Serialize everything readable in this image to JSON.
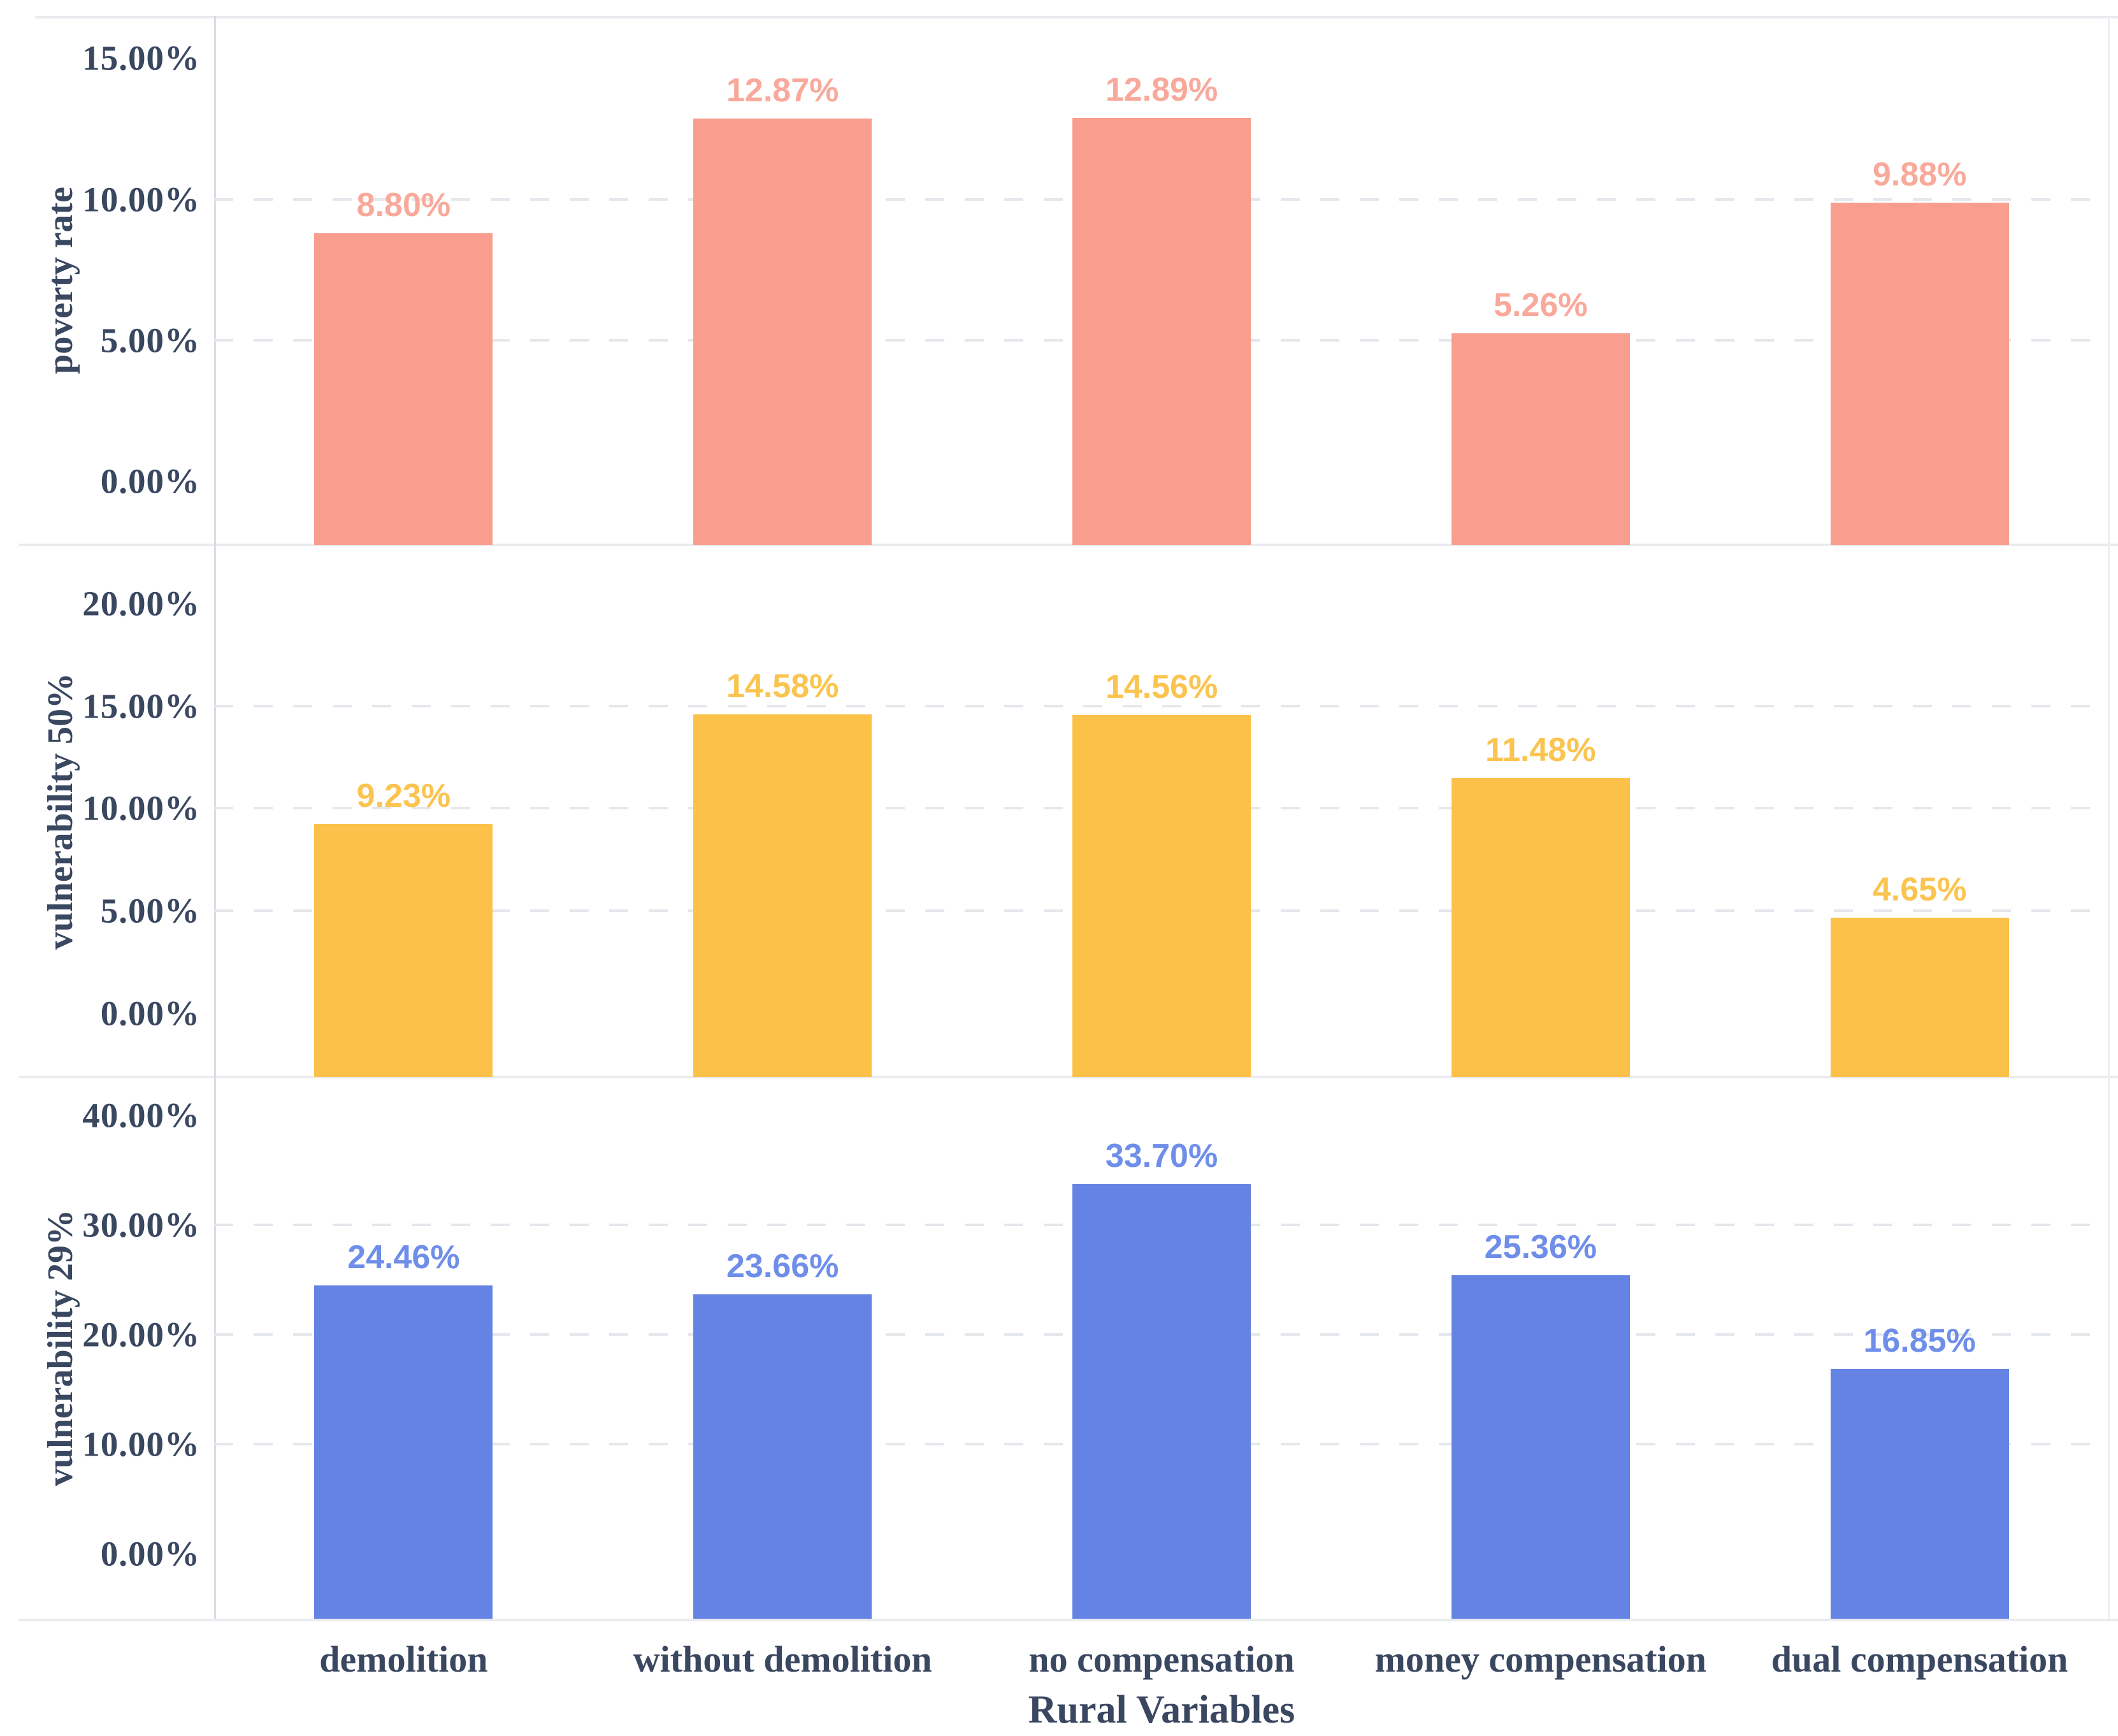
{
  "chart_data": {
    "type": "bar",
    "title": "",
    "xlabel": "Rural Variables",
    "categories": [
      "demolition",
      "without demolition",
      "no compensation",
      "money compensation",
      "dual compensation"
    ],
    "legend": "none",
    "grid": "dashed horizontal gridlines at interior ticks only",
    "background": "#ffffff",
    "text_color": "#3a4760",
    "gridline_color": "#e4e7eb",
    "axis_line_color": "#d9dde3",
    "separator_color": "#e9ebef",
    "panels": [
      {
        "ylabel": "poverty rate",
        "ymax": 15,
        "tick_step": 5,
        "ticks": [
          {
            "label": "0.00%",
            "value": 0
          },
          {
            "label": "5.00%",
            "value": 5
          },
          {
            "label": "10.00%",
            "value": 10
          },
          {
            "label": "15.00%",
            "value": 15
          }
        ],
        "values": [
          8.8,
          12.87,
          12.89,
          5.26,
          9.88
        ],
        "value_labels": [
          "8.80%",
          "12.87%",
          "12.89%",
          "5.26%",
          "9.88%"
        ],
        "bar_color": "#f99e8e",
        "label_color": "#f9a99b"
      },
      {
        "ylabel": "vulnerability 50%",
        "ymax": 20,
        "tick_step": 5,
        "ticks": [
          {
            "label": "0.00%",
            "value": 0
          },
          {
            "label": "5.00%",
            "value": 5
          },
          {
            "label": "10.00%",
            "value": 10
          },
          {
            "label": "15.00%",
            "value": 15
          },
          {
            "label": "20.00%",
            "value": 20
          }
        ],
        "values": [
          9.23,
          14.58,
          14.56,
          11.48,
          4.65
        ],
        "value_labels": [
          "9.23%",
          "14.58%",
          "14.56%",
          "11.48%",
          "4.65%"
        ],
        "bar_color": "#fbc148",
        "label_color": "#fbc44f"
      },
      {
        "ylabel": "vulnerability 29%",
        "ymax": 40,
        "tick_step": 10,
        "ticks": [
          {
            "label": "0.00%",
            "value": 0
          },
          {
            "label": "10.00%",
            "value": 10
          },
          {
            "label": "20.00%",
            "value": 20
          },
          {
            "label": "30.00%",
            "value": 30
          },
          {
            "label": "40.00%",
            "value": 40
          }
        ],
        "values": [
          24.46,
          23.66,
          33.7,
          25.36,
          16.85
        ],
        "value_labels": [
          "24.46%",
          "23.66%",
          "33.70%",
          "25.36%",
          "16.85%"
        ],
        "bar_color": "#6583e3",
        "label_color": "#6e8ee9"
      }
    ]
  }
}
